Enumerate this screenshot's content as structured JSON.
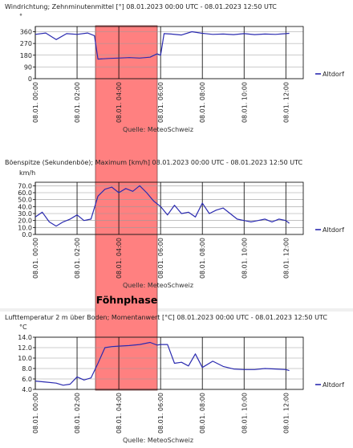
{
  "annotation": {
    "label": "Föhnphase",
    "color": "#ff8080"
  },
  "series_color": "#2b2bb0",
  "chart_data": [
    {
      "type": "line",
      "title": "Windrichtung; Zehnminutenmittel [°]  08.01.2023 00:00 UTC - 08.01.2023 12:50 UTC",
      "unit": "°",
      "yticks": [
        0,
        90,
        180,
        270,
        360
      ],
      "ytick_labels": [
        "0",
        "90",
        "180",
        "270",
        "360"
      ],
      "ylim": [
        0,
        400
      ],
      "xtick_labels": [
        "08.01. 00:00",
        "08.01. 02:00",
        "08.01. 04:00",
        "08.01. 06:00",
        "08.01. 08:00",
        "08.01. 10:00",
        "08.01. 12:00"
      ],
      "legend": "Altdorf",
      "source": "Quelle: MeteoSchweiz",
      "x": [
        "00:00",
        "00:30",
        "01:00",
        "01:30",
        "02:00",
        "02:30",
        "02:50",
        "03:00",
        "03:30",
        "04:00",
        "04:30",
        "05:00",
        "05:30",
        "05:50",
        "06:00",
        "06:10",
        "06:30",
        "07:00",
        "07:30",
        "08:00",
        "08:30",
        "09:00",
        "09:30",
        "10:00",
        "10:30",
        "11:00",
        "11:30",
        "12:00",
        "12:10"
      ],
      "values": [
        340,
        350,
        300,
        345,
        340,
        350,
        330,
        150,
        155,
        158,
        162,
        158,
        165,
        190,
        180,
        345,
        342,
        335,
        360,
        348,
        340,
        342,
        338,
        345,
        338,
        342,
        340,
        345,
        348
      ]
    },
    {
      "type": "line",
      "title": "Böenspitze (Sekundenböe); Maximum [km/h]  08.01.2023 00:00 UTC - 08.01.2023 12:50 UTC",
      "unit": "km/h",
      "yticks": [
        0,
        10,
        20,
        30,
        40,
        50,
        60,
        70
      ],
      "ytick_labels": [
        "0.0",
        "10.0",
        "20.0",
        "30.0",
        "40.0",
        "50.0",
        "60.0",
        "70.0"
      ],
      "ylim": [
        0,
        75
      ],
      "xtick_labels": [
        "08.01. 00:00",
        "08.01. 02:00",
        "08.01. 04:00",
        "08.01. 06:00",
        "08.01. 08:00",
        "08.01. 10:00",
        "08.01. 12:00"
      ],
      "legend": "Altdorf",
      "source": "Quelle: MeteoSchweiz",
      "x": [
        "00:00",
        "00:20",
        "00:40",
        "01:00",
        "01:20",
        "01:40",
        "02:00",
        "02:20",
        "02:40",
        "03:00",
        "03:20",
        "03:40",
        "04:00",
        "04:20",
        "04:40",
        "05:00",
        "05:20",
        "05:40",
        "06:00",
        "06:20",
        "06:40",
        "07:00",
        "07:20",
        "07:40",
        "08:00",
        "08:20",
        "08:40",
        "09:00",
        "09:20",
        "09:40",
        "10:00",
        "10:20",
        "10:40",
        "11:00",
        "11:20",
        "11:40",
        "12:00",
        "12:10"
      ],
      "values": [
        25,
        32,
        18,
        12,
        18,
        22,
        28,
        20,
        22,
        55,
        65,
        68,
        60,
        66,
        62,
        70,
        60,
        48,
        40,
        28,
        42,
        30,
        32,
        25,
        45,
        30,
        35,
        38,
        30,
        22,
        20,
        18,
        20,
        22,
        18,
        22,
        20,
        16
      ]
    },
    {
      "type": "line",
      "title": "Lufttemperatur 2 m über Boden; Momentanwert [°C]  08.01.2023 00:00 UTC - 08.01.2023 12:50 UTC",
      "unit": "°C",
      "yticks": [
        4,
        6,
        8,
        10,
        12,
        14
      ],
      "ytick_labels": [
        "4.0",
        "6.0",
        "8.0",
        "10.0",
        "12.0",
        "14.0"
      ],
      "ylim": [
        4,
        14
      ],
      "xtick_labels": [
        "08.01. 00:00",
        "08.01. 02:00",
        "08.01. 04:00",
        "08.01. 06:00",
        "08.01. 08:00",
        "08.01. 10:00",
        "08.01. 12:00"
      ],
      "legend": "Altdorf",
      "source": "Quelle: MeteoSchweiz",
      "x": [
        "00:00",
        "00:30",
        "01:00",
        "01:20",
        "01:40",
        "02:00",
        "02:20",
        "02:40",
        "03:00",
        "03:20",
        "03:40",
        "04:00",
        "04:30",
        "05:00",
        "05:30",
        "05:50",
        "06:00",
        "06:20",
        "06:40",
        "07:00",
        "07:20",
        "07:40",
        "08:00",
        "08:30",
        "09:00",
        "09:30",
        "10:00",
        "10:30",
        "11:00",
        "11:30",
        "12:00",
        "12:10"
      ],
      "values": [
        5.6,
        5.4,
        5.2,
        4.8,
        5.0,
        6.4,
        5.8,
        6.2,
        9.0,
        12.0,
        12.2,
        12.3,
        12.4,
        12.6,
        13.0,
        12.5,
        12.6,
        12.6,
        9.0,
        9.2,
        8.5,
        10.8,
        8.2,
        9.4,
        8.4,
        7.9,
        7.8,
        7.8,
        8.0,
        7.9,
        7.8,
        7.6
      ]
    }
  ]
}
